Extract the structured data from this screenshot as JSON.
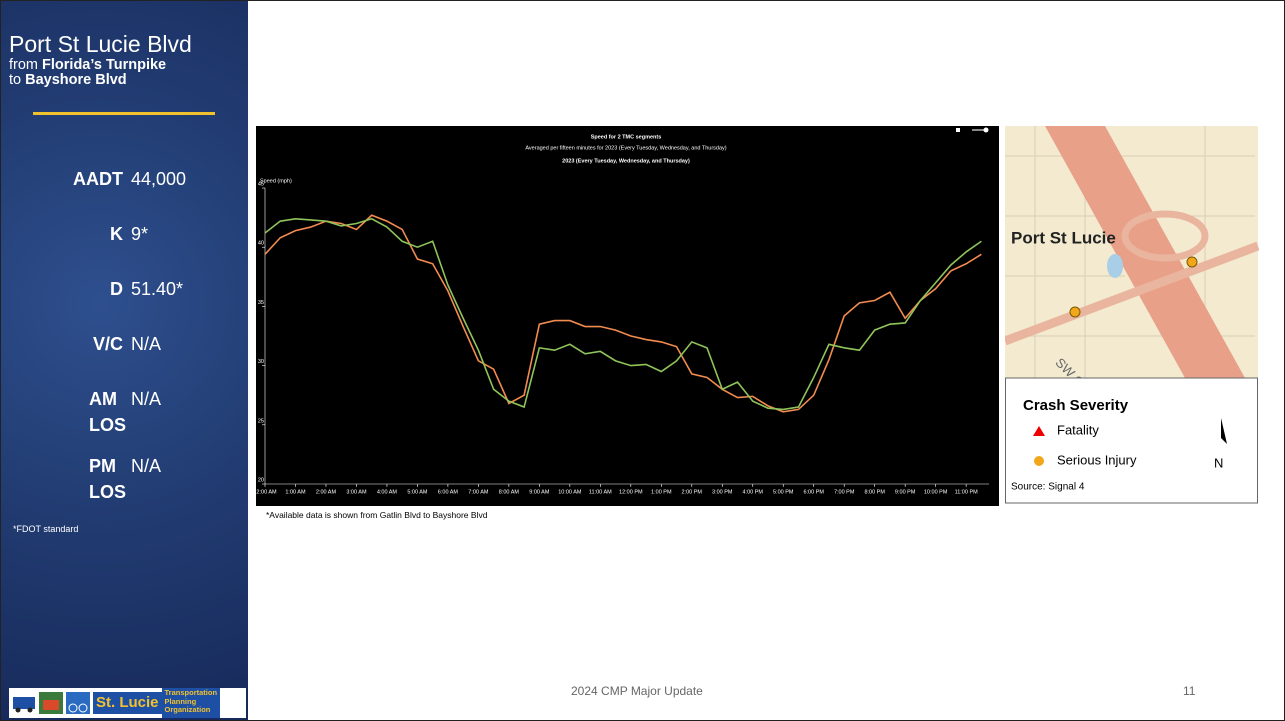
{
  "sidebar": {
    "title": "Port St Lucie Blvd",
    "from_word": "from",
    "from": "Florida’s Turnpike",
    "to_word": "to",
    "to": "Bayshore Blvd",
    "stats": [
      {
        "label": "AADT",
        "value": "44,000"
      },
      {
        "label": "K",
        "value": "9*"
      },
      {
        "label": "D",
        "value": "51.40*"
      },
      {
        "label": "V/C",
        "value": "N/A"
      },
      {
        "label": "AM LOS",
        "value": "N/A"
      },
      {
        "label": "PM LOS",
        "value": "N/A"
      }
    ],
    "note": "*FDOT standard",
    "logo": {
      "name": "St. Lucie",
      "org": [
        "Transportation",
        "Planning",
        "Organization"
      ]
    }
  },
  "chart_data": {
    "type": "line",
    "title": "Speed for 2 TMC segments",
    "subtitle": "Averaged per fifteen minutes for 2023 (Every Tuesday, Wednesday, and Thursday)",
    "subtitle2": "2023 (Every Tuesday, Wednesday, and Thursday)",
    "y_label": "Speed (mph)",
    "x": [
      0,
      0.5,
      1,
      1.5,
      2,
      2.5,
      3,
      3.5,
      4,
      4.5,
      5,
      5.5,
      6,
      6.5,
      7,
      7.5,
      8,
      8.5,
      9,
      9.5,
      10,
      10.5,
      11,
      11.5,
      12,
      12.5,
      13,
      13.5,
      14,
      14.5,
      15,
      15.5,
      16,
      16.5,
      17,
      17.5,
      18,
      18.5,
      19,
      19.5,
      20,
      20.5,
      21,
      21.5,
      22,
      22.5,
      23,
      23.5
    ],
    "series": [
      {
        "color": "#f28b50",
        "values": [
          39.4,
          40.8,
          41.4,
          41.7,
          42.2,
          42.0,
          41.5,
          42.7,
          42.2,
          41.5,
          39.0,
          38.6,
          36.3,
          33.3,
          30.4,
          29.7,
          26.8,
          27.5,
          33.5,
          33.8,
          33.8,
          33.3,
          33.3,
          33.0,
          32.5,
          32.2,
          32.0,
          31.6,
          29.3,
          29.0,
          28.0,
          27.3,
          27.4,
          26.6,
          26.1,
          26.3,
          27.5,
          30.5,
          34.2,
          35.3,
          35.5,
          36.2,
          34.0,
          35.5,
          36.5,
          38.0,
          38.6,
          39.4
        ]
      },
      {
        "color": "#8fc45a",
        "values": [
          41.2,
          42.2,
          42.4,
          42.3,
          42.2,
          41.8,
          42.0,
          42.4,
          41.7,
          40.5,
          40.0,
          40.5,
          36.8,
          34.0,
          31.3,
          28.0,
          27.0,
          26.5,
          31.5,
          31.3,
          31.8,
          31.0,
          31.2,
          30.4,
          30.0,
          30.1,
          29.5,
          30.4,
          32.0,
          31.5,
          28.0,
          28.6,
          27.0,
          26.4,
          26.3,
          26.5,
          29.0,
          31.8,
          31.5,
          31.3,
          33.0,
          33.5,
          33.6,
          35.5,
          37.0,
          38.5,
          39.6,
          40.5
        ]
      }
    ],
    "xlim": [
      0,
      23.75
    ],
    "xticks": [
      {
        "value": 0,
        "label": "12:00 AM"
      },
      {
        "value": 1,
        "label": "1:00 AM"
      },
      {
        "value": 2,
        "label": "2:00 AM"
      },
      {
        "value": 3,
        "label": "3:00 AM"
      },
      {
        "value": 4,
        "label": "4:00 AM"
      },
      {
        "value": 5,
        "label": "5:00 AM"
      },
      {
        "value": 6,
        "label": "6:00 AM"
      },
      {
        "value": 7,
        "label": "7:00 AM"
      },
      {
        "value": 8,
        "label": "8:00 AM"
      },
      {
        "value": 9,
        "label": "9:00 AM"
      },
      {
        "value": 10,
        "label": "10:00 AM"
      },
      {
        "value": 11,
        "label": "11:00 AM"
      },
      {
        "value": 12,
        "label": "12:00 PM"
      },
      {
        "value": 13,
        "label": "1:00 PM"
      },
      {
        "value": 14,
        "label": "2:00 PM"
      },
      {
        "value": 15,
        "label": "3:00 PM"
      },
      {
        "value": 16,
        "label": "4:00 PM"
      },
      {
        "value": 17,
        "label": "5:00 PM"
      },
      {
        "value": 18,
        "label": "6:00 PM"
      },
      {
        "value": 19,
        "label": "7:00 PM"
      },
      {
        "value": 20,
        "label": "8:00 PM"
      },
      {
        "value": 21,
        "label": "9:00 PM"
      },
      {
        "value": 22,
        "label": "10:00 PM"
      },
      {
        "value": 23,
        "label": "11:00 PM"
      }
    ],
    "ylim": [
      20,
      45
    ],
    "yticks": [
      20,
      25,
      30,
      35,
      40,
      45
    ]
  },
  "chart_note": "*Available data is shown from Gatlin Blvd to Bayshore Blvd",
  "map": {
    "place": "Port St Lucie",
    "street": "SW Cameo",
    "legend_title": "Crash Severity",
    "fatality": "Fatality",
    "injury": "Serious Injury",
    "source": "Source:  Signal 4",
    "north": "N"
  },
  "footer": {
    "center": "2024 CMP Major Update",
    "page": "11"
  }
}
